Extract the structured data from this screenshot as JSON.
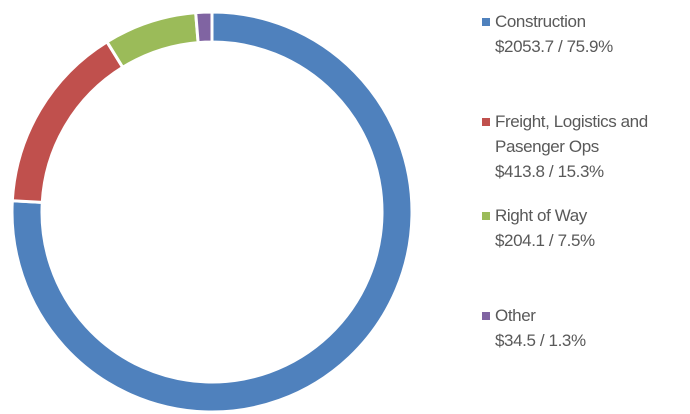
{
  "chart_data": {
    "type": "donut",
    "categories": [
      "Construction",
      "Freight, Logistics and Pasenger Ops",
      "Right of Way",
      "Other"
    ],
    "values": [
      75.9,
      15.3,
      7.5,
      1.3
    ],
    "value_labels": [
      "$2053.7 / 75.9%",
      "$413.8 / 15.3%",
      "$204.1 / 7.5%",
      "$34.5 / 1.3%"
    ],
    "colors": [
      "#4f81bd",
      "#c0504d",
      "#9bbb59",
      "#8064a2"
    ],
    "legend": "right"
  }
}
